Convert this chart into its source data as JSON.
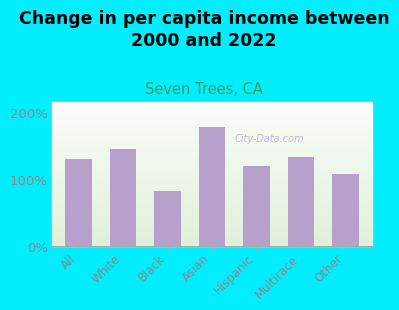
{
  "title": "Change in per capita income between\n2000 and 2022",
  "subtitle": "Seven Trees, CA",
  "categories": [
    "All",
    "White",
    "Black",
    "Asian",
    "Hispanic",
    "Multirace",
    "Other"
  ],
  "values": [
    130,
    145,
    83,
    178,
    120,
    133,
    108
  ],
  "bar_color": "#b8a0cc",
  "background_outer": "#00eeff",
  "title_color": "#000000",
  "subtitle_color": "#3a9a5c",
  "axis_color": "#888888",
  "yticks": [
    0,
    100,
    200
  ],
  "ytick_labels": [
    "0%",
    "100%",
    "200%"
  ],
  "ylim": [
    0,
    215
  ],
  "watermark": "City-Data.com",
  "title_fontsize": 12.5,
  "subtitle_fontsize": 10.5
}
